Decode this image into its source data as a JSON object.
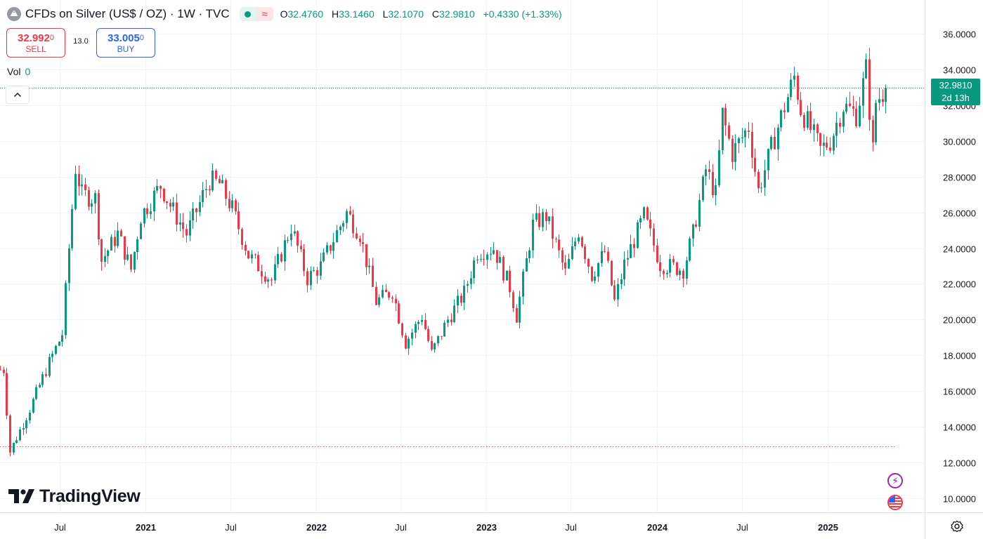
{
  "header": {
    "title": "CFDs on Silver (US$ / OZ) · 1W · TVC",
    "ohlc": [
      {
        "key": "O",
        "value": "32.4760"
      },
      {
        "key": "H",
        "value": "33.1460"
      },
      {
        "key": "L",
        "value": "32.1070"
      },
      {
        "key": "C",
        "value": "32.9810"
      }
    ],
    "change": "+0.4330 (+1.33%)",
    "pill_icon": "wave-icon"
  },
  "trade": {
    "sell_price_main": "32.992",
    "sell_price_small": "0",
    "sell_label": "SELL",
    "spread": "13.0",
    "buy_price_main": "33.005",
    "buy_price_small": "0",
    "buy_label": "BUY"
  },
  "volume": {
    "label": "Vol",
    "value": "0"
  },
  "last_price_tag": {
    "price": "32.9810",
    "countdown": "2d 13h"
  },
  "logo": {
    "text": "TradingView"
  },
  "colors": {
    "up": "#089981",
    "down": "#f23645",
    "grid": "#f0f3fa",
    "text": "#131722",
    "logo_bolt": "#9c27b0"
  },
  "chart_data": {
    "type": "candlestick",
    "yaxis": {
      "ticks": [
        "36.0000",
        "34.0000",
        "32.0000",
        "30.0000",
        "28.0000",
        "26.0000",
        "24.0000",
        "22.0000",
        "20.0000",
        "18.0000",
        "16.0000",
        "14.0000",
        "12.0000",
        "10.0000"
      ],
      "range": [
        9.2,
        36.8
      ]
    },
    "xaxis": {
      "ticks": [
        {
          "label": "Jul",
          "date": "2020-07-01"
        },
        {
          "label": "2021",
          "date": "2021-01-01"
        },
        {
          "label": "Jul",
          "date": "2021-07-01"
        },
        {
          "label": "2022",
          "date": "2022-01-01"
        },
        {
          "label": "Jul",
          "date": "2022-07-01"
        },
        {
          "label": "2023",
          "date": "2023-01-01"
        },
        {
          "label": "Jul",
          "date": "2023-07-01"
        },
        {
          "label": "2024",
          "date": "2024-01-01"
        },
        {
          "label": "Jul",
          "date": "2024-07-01"
        },
        {
          "label": "2025",
          "date": "2025-01-01"
        }
      ],
      "range": [
        "2020-02-24",
        "2025-07-28"
      ]
    },
    "last_price": 32.981,
    "low_line": 12.9,
    "anchors": [
      {
        "date": "2020-03-02",
        "close": 17.2
      },
      {
        "date": "2020-03-16",
        "close": 12.6
      },
      {
        "date": "2020-04-27",
        "close": 15.0
      },
      {
        "date": "2020-06-08",
        "close": 17.6
      },
      {
        "date": "2020-07-06",
        "close": 19.2
      },
      {
        "date": "2020-07-20",
        "close": 24.0
      },
      {
        "date": "2020-08-03",
        "close": 28.5
      },
      {
        "date": "2020-08-17",
        "close": 27.0
      },
      {
        "date": "2020-09-14",
        "close": 26.8
      },
      {
        "date": "2020-09-28",
        "close": 23.3
      },
      {
        "date": "2020-11-02",
        "close": 24.8
      },
      {
        "date": "2020-11-30",
        "close": 22.8
      },
      {
        "date": "2020-12-21",
        "close": 25.8
      },
      {
        "date": "2021-02-01",
        "close": 27.5
      },
      {
        "date": "2021-02-22",
        "close": 26.4
      },
      {
        "date": "2021-03-29",
        "close": 24.8
      },
      {
        "date": "2021-05-17",
        "close": 27.8
      },
      {
        "date": "2021-06-07",
        "close": 27.6
      },
      {
        "date": "2021-07-05",
        "close": 26.2
      },
      {
        "date": "2021-08-09",
        "close": 23.6
      },
      {
        "date": "2021-09-27",
        "close": 22.2
      },
      {
        "date": "2021-11-08",
        "close": 25.2
      },
      {
        "date": "2021-12-13",
        "close": 22.3
      },
      {
        "date": "2022-01-10",
        "close": 23.0
      },
      {
        "date": "2022-03-07",
        "close": 26.0
      },
      {
        "date": "2022-04-04",
        "close": 24.8
      },
      {
        "date": "2022-05-09",
        "close": 21.0
      },
      {
        "date": "2022-06-13",
        "close": 21.6
      },
      {
        "date": "2022-07-11",
        "close": 18.7
      },
      {
        "date": "2022-08-15",
        "close": 20.2
      },
      {
        "date": "2022-09-05",
        "close": 18.1
      },
      {
        "date": "2022-10-10",
        "close": 20.0
      },
      {
        "date": "2022-11-14",
        "close": 21.5
      },
      {
        "date": "2022-12-12",
        "close": 23.8
      },
      {
        "date": "2023-01-16",
        "close": 24.0
      },
      {
        "date": "2023-02-20",
        "close": 21.8
      },
      {
        "date": "2023-03-06",
        "close": 20.2
      },
      {
        "date": "2023-04-10",
        "close": 25.3
      },
      {
        "date": "2023-05-08",
        "close": 25.8
      },
      {
        "date": "2023-06-19",
        "close": 22.6
      },
      {
        "date": "2023-07-17",
        "close": 25.0
      },
      {
        "date": "2023-08-14",
        "close": 22.5
      },
      {
        "date": "2023-09-11",
        "close": 23.8
      },
      {
        "date": "2023-10-02",
        "close": 21.0
      },
      {
        "date": "2023-10-23",
        "close": 23.1
      },
      {
        "date": "2023-12-04",
        "close": 25.8
      },
      {
        "date": "2024-01-08",
        "close": 23.1
      },
      {
        "date": "2024-02-26",
        "close": 22.8
      },
      {
        "date": "2024-03-18",
        "close": 24.8
      },
      {
        "date": "2024-04-15",
        "close": 28.4
      },
      {
        "date": "2024-05-06",
        "close": 27.0
      },
      {
        "date": "2024-05-20",
        "close": 31.5
      },
      {
        "date": "2024-06-10",
        "close": 29.3
      },
      {
        "date": "2024-07-15",
        "close": 30.8
      },
      {
        "date": "2024-08-05",
        "close": 27.2
      },
      {
        "date": "2024-09-16",
        "close": 30.8
      },
      {
        "date": "2024-10-21",
        "close": 33.6
      },
      {
        "date": "2024-11-04",
        "close": 31.8
      },
      {
        "date": "2024-12-16",
        "close": 29.5
      },
      {
        "date": "2025-01-06",
        "close": 30.0
      },
      {
        "date": "2025-02-03",
        "close": 32.0
      },
      {
        "date": "2025-03-03",
        "close": 31.5
      },
      {
        "date": "2025-03-24",
        "close": 34.0
      },
      {
        "date": "2025-04-07",
        "close": 29.5
      },
      {
        "date": "2025-04-14",
        "close": 32.2
      },
      {
        "date": "2025-05-05",
        "close": 32.981
      }
    ]
  }
}
